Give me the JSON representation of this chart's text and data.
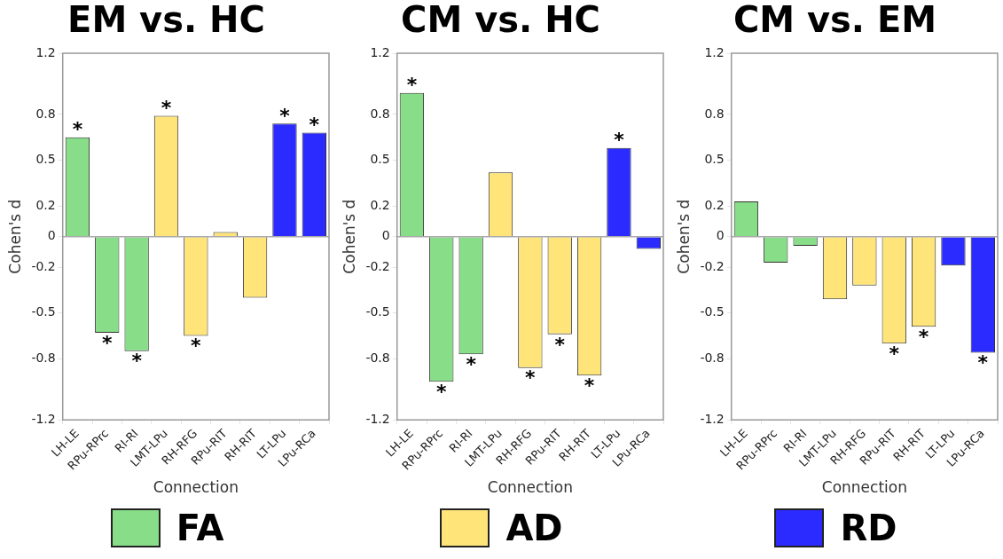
{
  "chart_data": [
    {
      "type": "bar",
      "title": "EM vs. HC",
      "xlabel": "Connection",
      "ylabel": "Cohen's d",
      "legend": "bottom",
      "categories": [
        "LH-LE",
        "RPu-RPrc",
        "RI-RI",
        "LMT-LPu",
        "RH-RFG",
        "RPu-RIT",
        "RH-RIT",
        "LT-LPu",
        "LPu-RCa"
      ],
      "series": [
        {
          "name": "FA",
          "color": "#88dd88",
          "values": [
            0.65,
            -0.63,
            -0.75,
            null,
            null,
            null,
            null,
            null,
            null
          ]
        },
        {
          "name": "AD",
          "color": "#ffe47a",
          "values": [
            null,
            null,
            null,
            0.79,
            -0.65,
            0.03,
            -0.4,
            null,
            null
          ]
        },
        {
          "name": "RD",
          "color": "#2b2bff",
          "values": [
            null,
            null,
            null,
            null,
            null,
            null,
            null,
            0.74,
            0.68
          ]
        }
      ],
      "ylim": [
        -1.2,
        1.2
      ],
      "yticks": [
        -1.2,
        -0.8,
        -0.5,
        -0.2,
        0,
        0.2,
        0.5,
        0.8,
        1.2
      ],
      "ref_lines": [
        {
          "axis": "y",
          "value": 0,
          "color": "#aaaaaa"
        }
      ],
      "annotations": [
        {
          "text": "*",
          "x": "LH-LE",
          "y": 0.65
        },
        {
          "text": "*",
          "x": "RPu-RPrc",
          "y": -0.63
        },
        {
          "text": "*",
          "x": "RI-RI",
          "y": -0.75
        },
        {
          "text": "*",
          "x": "LMT-LPu",
          "y": 0.79
        },
        {
          "text": "*",
          "x": "RH-RFG",
          "y": -0.65
        },
        {
          "text": "*",
          "x": "LT-LPu",
          "y": 0.74
        },
        {
          "text": "*",
          "x": "LPu-RCa",
          "y": 0.68
        }
      ]
    },
    {
      "type": "bar",
      "title": "CM vs. HC",
      "xlabel": "Connection",
      "ylabel": "Cohen's d",
      "categories": [
        "LH-LE",
        "RPu-RPrc",
        "RI-RI",
        "LMT-LPu",
        "RH-RFG",
        "RPu-RIT",
        "RH-RIT",
        "LT-LPu",
        "LPu-RCa"
      ],
      "series": [
        {
          "color": "#88dd88",
          "values": [
            0.94,
            -0.95,
            -0.77,
            null,
            null,
            null,
            null,
            null,
            null
          ]
        },
        {
          "color": "#ffe47a",
          "values": [
            null,
            null,
            null,
            0.42,
            -0.86,
            -0.64,
            -0.91,
            null,
            null
          ]
        },
        {
          "color": "#2b2bff",
          "values": [
            null,
            null,
            null,
            null,
            null,
            null,
            null,
            0.58,
            -0.08
          ]
        }
      ],
      "ylim": [
        -1.2,
        1.2
      ],
      "yticks": [
        -1.2,
        -0.8,
        -0.5,
        -0.2,
        0,
        0.2,
        0.5,
        0.8,
        1.2
      ],
      "ref_lines": [
        {
          "axis": "y",
          "value": 0,
          "color": "#aaaaaa"
        }
      ],
      "annotations": [
        {
          "text": "*",
          "x": "LH-LE",
          "y": 0.94
        },
        {
          "text": "*",
          "x": "RPu-RPrc",
          "y": -0.95
        },
        {
          "text": "*",
          "x": "RI-RI",
          "y": -0.77
        },
        {
          "text": "*",
          "x": "RH-RFG",
          "y": -0.86
        },
        {
          "text": "*",
          "x": "RPu-RIT",
          "y": -0.64
        },
        {
          "text": "*",
          "x": "RH-RIT",
          "y": -0.91
        },
        {
          "text": "*",
          "x": "LT-LPu",
          "y": 0.58
        }
      ]
    },
    {
      "type": "bar",
      "title": "CM vs. EM",
      "xlabel": "Connection",
      "ylabel": "Cohen's d",
      "categories": [
        "LH-LE",
        "RPu-RPrc",
        "RI-RI",
        "LMT-LPu",
        "RH-RFG",
        "RPu-RIT",
        "RH-RIT",
        "LT-LPu",
        "LPu-RCa"
      ],
      "series": [
        {
          "color": "#88dd88",
          "values": [
            0.23,
            -0.17,
            -0.06,
            null,
            null,
            null,
            null,
            null,
            null
          ]
        },
        {
          "color": "#ffe47a",
          "values": [
            null,
            null,
            null,
            -0.41,
            -0.32,
            -0.7,
            -0.59,
            null,
            null
          ]
        },
        {
          "color": "#2b2bff",
          "values": [
            null,
            null,
            null,
            null,
            null,
            null,
            null,
            -0.19,
            -0.76
          ]
        }
      ],
      "ylim": [
        -1.2,
        1.2
      ],
      "yticks": [
        -1.2,
        -0.8,
        -0.5,
        -0.2,
        0,
        0.2,
        0.5,
        0.8,
        1.2
      ],
      "ref_lines": [
        {
          "axis": "y",
          "value": 0,
          "color": "#aaaaaa"
        }
      ],
      "annotations": [
        {
          "text": "*",
          "x": "RPu-RIT",
          "y": -0.7
        },
        {
          "text": "*",
          "x": "RH-RIT",
          "y": -0.59
        },
        {
          "text": "*",
          "x": "LPu-RCa",
          "y": -0.76
        }
      ]
    }
  ]
}
